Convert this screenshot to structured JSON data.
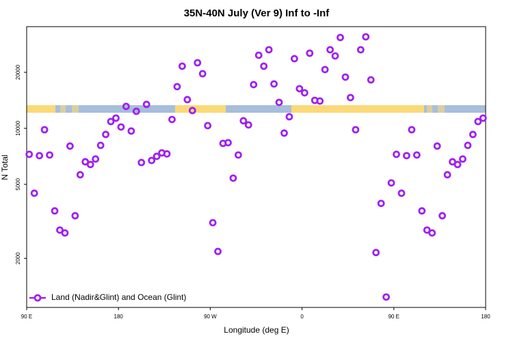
{
  "chart_data": {
    "type": "scatter",
    "title": "35N-40N July (Ver 9)   Inf to -Inf",
    "xlabel": "Longitude (deg E)",
    "ylabel": "N Total",
    "log_y": true,
    "legend_position": "lower left",
    "xlim": [
      90,
      540
    ],
    "ylim": [
      1090,
      35200
    ],
    "xticks": [
      {
        "value": 90,
        "label": "90 E"
      },
      180,
      {
        "value": 270,
        "label": "90 W"
      },
      {
        "value": 360,
        "label": "0"
      },
      {
        "value": 450,
        "label": "90 E"
      },
      {
        "value": 540,
        "label": "180"
      }
    ],
    "yticks": [
      2000,
      5000,
      10000,
      20000
    ],
    "series": [
      {
        "name": "Land (Nadir&Glint) and Ocean (Glint)",
        "color": "#a020f0",
        "x": [
          92.5,
          97.5,
          102.5,
          107.5,
          112.5,
          117.5,
          122.5,
          127.5,
          132.5,
          137.5,
          142.5,
          147.5,
          152.5,
          157.5,
          162.5,
          167.5,
          172.5,
          177.5,
          182.5,
          187.5,
          192.5,
          197.5,
          202.5,
          207.5,
          212.5,
          217.5,
          222.5,
          227.5,
          232.5,
          237.5,
          242.5,
          247.5,
          252.5,
          257.5,
          262.5,
          267.5,
          272.5,
          277.5,
          282.5,
          287.5,
          292.5,
          297.5,
          302.5,
          307.5,
          312.5,
          317.5,
          322.5,
          327.5,
          332.5,
          337.5,
          342.5,
          347.5,
          352.5,
          357.5,
          362.5,
          367.5,
          372.5,
          377.5,
          382.5,
          387.5,
          392.5,
          397.5,
          402.5,
          407.5,
          412.5,
          417.5,
          422.5,
          427.5,
          432.5,
          437.5,
          442.5,
          447.5,
          452.5,
          457.5,
          462.5,
          467.5,
          472.5,
          477.5,
          482.5,
          487.5,
          492.5,
          497.5,
          502.5,
          507.5,
          512.5,
          517.5,
          522.5,
          527.5,
          532.5,
          537.5
        ],
        "values": [
          7250,
          4480,
          7130,
          9830,
          7190,
          3600,
          2840,
          2740,
          8030,
          3390,
          5630,
          6610,
          6390,
          6840,
          8100,
          9270,
          10880,
          11350,
          10170,
          13110,
          9670,
          12350,
          6550,
          13450,
          6720,
          7070,
          7380,
          7290,
          11160,
          16750,
          21580,
          14270,
          12460,
          22510,
          19660,
          10340,
          3110,
          2180,
          8300,
          8370,
          5400,
          7190,
          10980,
          10430,
          17180,
          24710,
          21580,
          26440,
          17320,
          13790,
          9430,
          11540,
          23680,
          16330,
          15520,
          25340,
          14140,
          14020,
          20690,
          26440,
          24500,
          30780,
          18850,
          14630,
          9830,
          26440,
          31040,
          18220,
          2150,
          3950,
          1240,
          5090,
          7250,
          4480,
          7130,
          9830,
          7190,
          3600,
          2840,
          2740,
          8030,
          3390,
          5630,
          6610,
          6390,
          6840,
          8100,
          9270,
          10880,
          11350
        ]
      }
    ]
  }
}
